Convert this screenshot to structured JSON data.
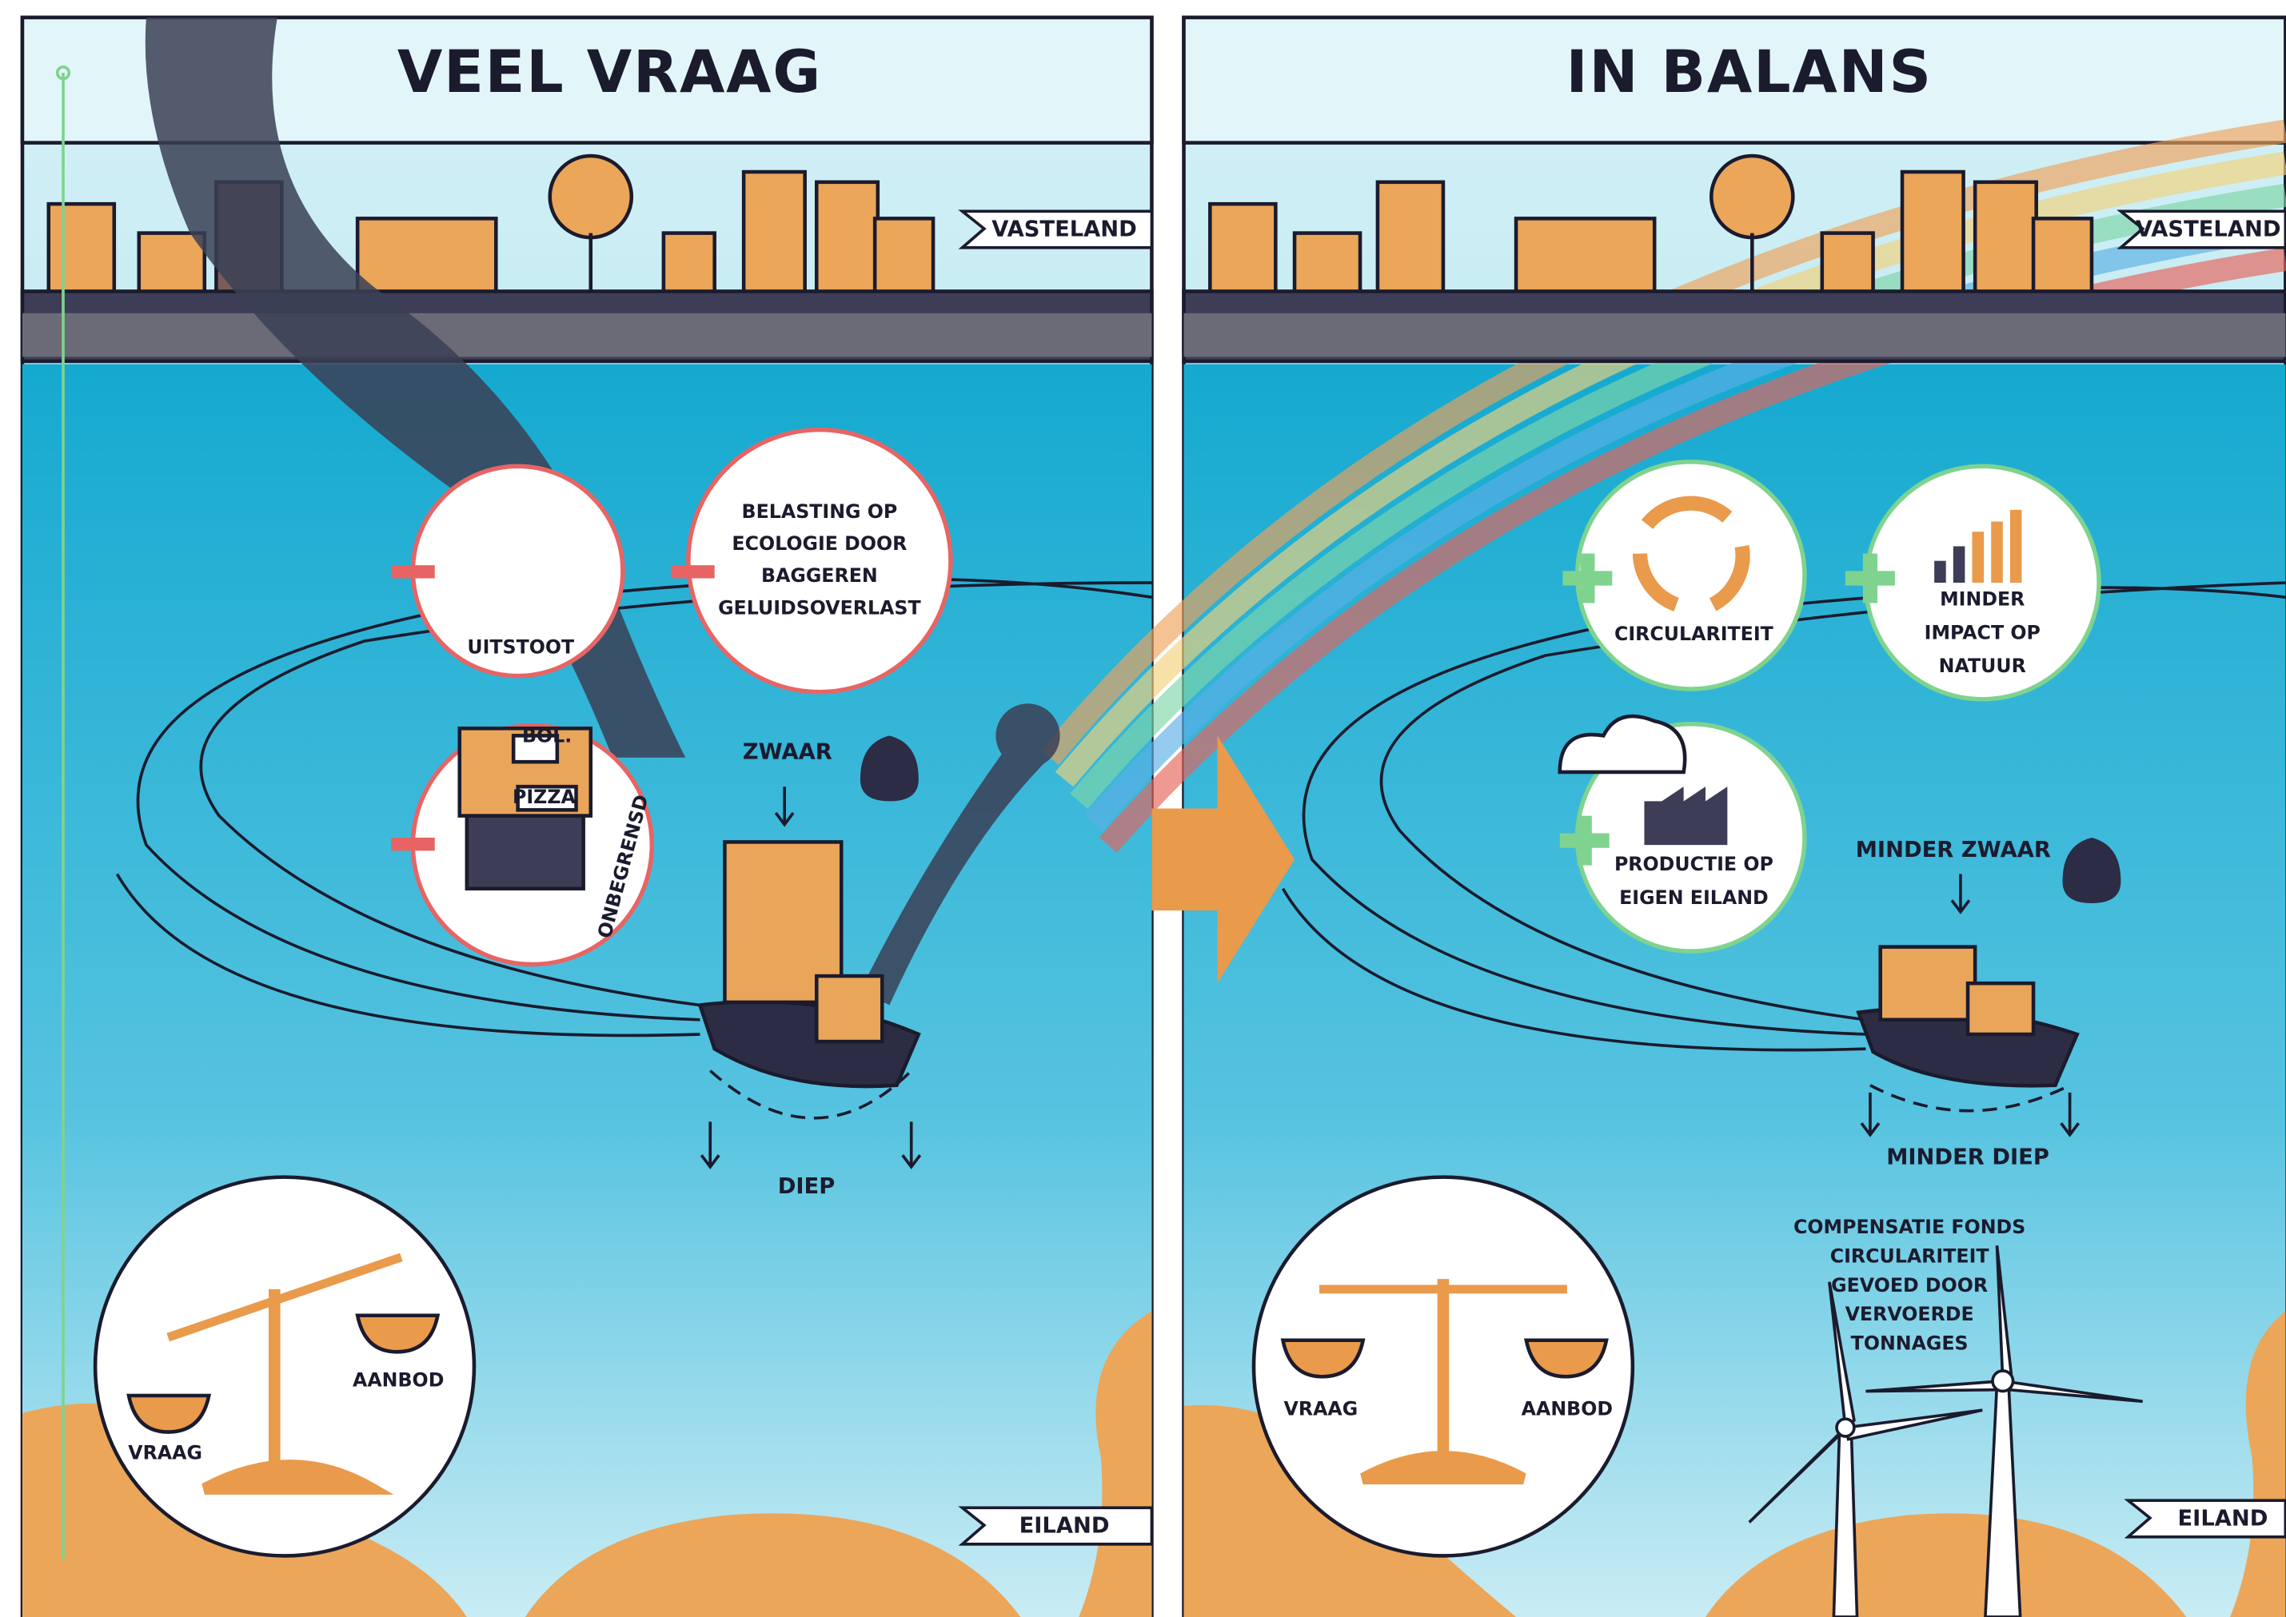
{
  "panels": [
    {
      "title": "VEEL VRAAG",
      "mainland_label": "VASTELAND",
      "island_label": "EILAND",
      "callouts": [
        [
          "UITSTOOT"
        ],
        [
          "BELASTING OP",
          "ECOLOGIE DOOR",
          "BAGGEREN",
          "GELUIDSOVERLAST"
        ],
        [
          "ONBEGRENSD"
        ]
      ],
      "product_labels": [
        "BOL.",
        "PIZZA"
      ],
      "weight_label": "ZWAAR",
      "depth_label": "DIEP",
      "scale_labels": [
        "VRAAG",
        "AANBOD"
      ]
    },
    {
      "title": "IN BALANS",
      "mainland_label": "VASTELAND",
      "island_label": "EILAND",
      "callouts": [
        [
          "CIRCULARITEIT"
        ],
        [
          "MINDER",
          "IMPACT OP",
          "NATUUR"
        ],
        [
          "PRODUCTIE OP",
          "EIGEN EILAND"
        ]
      ],
      "weight_label": "MINDER ZWAAR",
      "depth_label": "MINDER DIEP",
      "scale_labels": [
        "VRAAG",
        "AANBOD"
      ],
      "note": [
        "COMPENSATIE FONDS",
        "CIRCULARITEIT",
        "GEVOED DOOR",
        "VERVOERDE",
        "TONNAGES"
      ]
    }
  ]
}
